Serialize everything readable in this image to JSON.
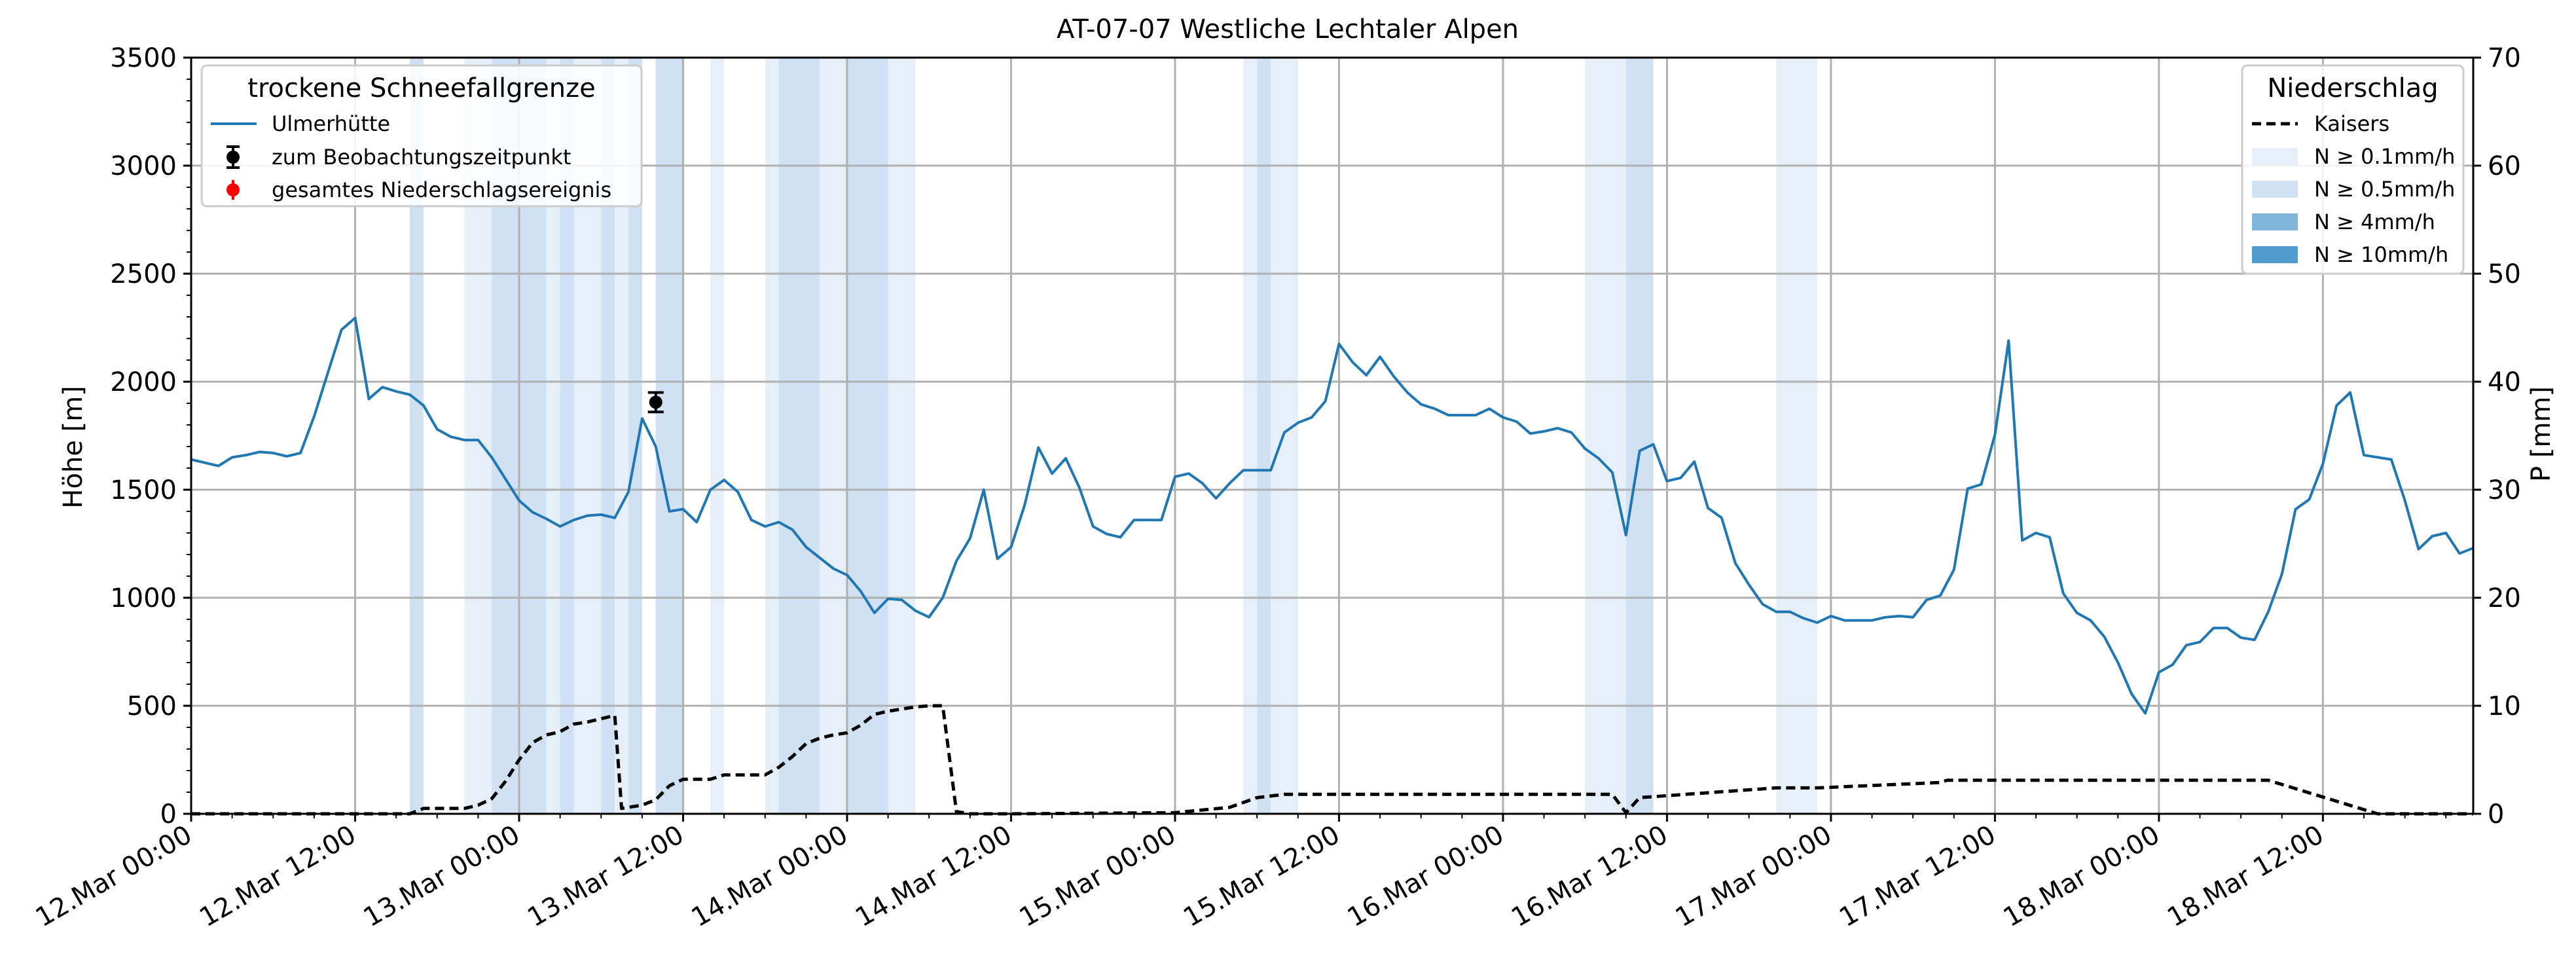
{
  "chart_data": {
    "type": "line",
    "title": "AT-07-07 Westliche Lechtaler Alpen",
    "ylabel": "Höhe [m]",
    "y2label": "P [mm]",
    "ylim": [
      0,
      3500
    ],
    "y2lim": [
      0,
      70
    ],
    "yticks": [
      0,
      500,
      1000,
      1500,
      2000,
      2500,
      3000,
      3500
    ],
    "y2ticks": [
      0,
      10,
      20,
      30,
      40,
      50,
      60,
      70
    ],
    "xlim_hours": [
      0,
      167
    ],
    "xtick_labels": [
      "12.Mar 00:00",
      "12.Mar 12:00",
      "13.Mar 00:00",
      "13.Mar 12:00",
      "14.Mar 00:00",
      "14.Mar 12:00",
      "15.Mar 00:00",
      "15.Mar 12:00",
      "16.Mar 00:00",
      "16.Mar 12:00",
      "17.Mar 00:00",
      "17.Mar 12:00",
      "18.Mar 00:00",
      "18.Mar 12:00"
    ],
    "grid": true,
    "legend_left": {
      "title": "trockene Schneefallgrenze",
      "placement": "top-left",
      "entries": [
        "Ulmerhütte",
        "zum Beobachtungszeitpunkt",
        "gesamtes Niederschlagsereignis"
      ]
    },
    "legend_right": {
      "title": "Niederschlag",
      "placement": "top-right",
      "entries": [
        "Kaisers",
        "N ≥ 0.1mm/h",
        "N ≥ 0.5mm/h",
        "N ≥ 4mm/h",
        "N ≥ 10mm/h"
      ]
    },
    "colors": {
      "line": "#1f77b4",
      "precip": "#000000",
      "n01": "#e6eef8",
      "n05": "#cfe1f2",
      "n4": "#7fb6d9",
      "n10": "#4f9bcb",
      "grid": "#b0b0b0",
      "observation": "#000000",
      "total_event": "#ff0000"
    },
    "series": [
      {
        "name": "Ulmerhütte",
        "axis": "left",
        "x_hours": [
          0,
          2,
          3,
          4,
          5,
          6,
          7,
          8,
          9,
          10,
          11,
          12,
          13,
          14,
          15,
          16,
          17,
          18,
          19,
          20,
          21,
          22,
          23,
          24,
          25,
          26,
          27,
          28,
          29,
          30,
          31,
          32,
          33,
          34,
          35,
          36,
          37,
          38,
          39,
          40,
          41,
          42,
          43,
          44,
          45,
          46,
          47,
          48,
          49,
          50,
          51,
          52,
          53,
          54,
          55,
          56,
          57,
          58,
          59,
          60,
          61,
          62,
          63,
          64,
          65,
          66,
          67,
          68,
          69,
          70,
          71,
          72,
          73,
          74,
          75,
          76,
          77,
          78,
          79,
          80,
          81,
          82,
          83,
          84,
          85,
          86,
          87,
          88,
          89,
          90,
          91,
          92,
          93,
          94,
          95,
          96,
          97,
          98,
          99,
          100,
          101,
          102,
          103,
          104,
          105,
          106,
          107,
          108,
          109,
          110,
          111,
          112,
          113,
          114,
          115,
          116,
          117,
          118,
          119,
          120,
          121,
          122,
          123,
          124,
          125,
          126,
          127,
          128,
          129,
          130,
          131,
          132,
          133,
          134,
          135,
          136,
          137,
          138,
          139,
          140,
          141,
          142,
          143,
          144,
          145,
          146,
          147,
          148,
          149,
          150,
          151,
          152,
          153,
          154,
          155,
          156,
          157,
          158,
          159,
          160,
          161,
          162,
          163,
          164,
          165,
          166,
          167
        ],
        "values": [
          1640,
          1610,
          1650,
          1660,
          1675,
          1670,
          1655,
          1670,
          1840,
          2040,
          2240,
          2295,
          1920,
          1975,
          1955,
          1940,
          1890,
          1780,
          1745,
          1730,
          1730,
          1650,
          1550,
          1450,
          1395,
          1365,
          1330,
          1360,
          1380,
          1385,
          1370,
          1490,
          1830,
          1700,
          1400,
          1410,
          1350,
          1500,
          1545,
          1490,
          1360,
          1330,
          1350,
          1315,
          1235,
          1185,
          1135,
          1105,
          1030,
          930,
          995,
          990,
          940,
          910,
          1000,
          1170,
          1275,
          1500,
          1180,
          1235,
          1430,
          1695,
          1575,
          1645,
          1510,
          1330,
          1295,
          1280,
          1360,
          1360,
          1360,
          1560,
          1575,
          1530,
          1460,
          1530,
          1590,
          1590,
          1590,
          1765,
          1810,
          1835,
          1910,
          2175,
          2090,
          2030,
          2115,
          2025,
          1950,
          1895,
          1875,
          1845,
          1845,
          1845,
          1875,
          1835,
          1815,
          1760,
          1770,
          1785,
          1765,
          1690,
          1645,
          1580,
          1290,
          1680,
          1710,
          1540,
          1555,
          1630,
          1415,
          1370,
          1160,
          1060,
          970,
          935,
          935,
          905,
          885,
          915,
          895,
          895,
          895,
          910,
          915,
          910,
          990,
          1010,
          1130,
          1505,
          1525,
          1755,
          2190,
          1265,
          1300,
          1280,
          1020,
          930,
          895,
          820,
          700,
          555,
          465,
          655,
          690,
          780,
          795,
          860,
          860,
          815,
          805,
          935,
          1110,
          1410,
          1455,
          1620,
          1890,
          1950,
          1660,
          1650,
          1640,
          1450,
          1225,
          1285,
          1300,
          1205,
          1230
        ]
      },
      {
        "name": "Kaisers",
        "axis": "right",
        "x_hours": [
          0,
          16,
          17,
          20,
          21,
          22,
          23,
          24,
          25,
          26,
          27,
          28,
          29,
          30,
          31,
          31.5,
          32,
          33,
          34,
          35,
          36,
          37,
          38,
          39,
          40,
          41,
          42,
          43,
          44,
          45,
          46,
          47,
          48,
          49,
          50,
          51,
          52,
          53,
          54,
          55,
          56,
          56.5,
          57,
          58,
          60,
          72,
          76,
          78,
          80,
          101,
          102,
          103,
          104,
          105,
          106,
          116,
          117,
          118,
          119,
          128,
          128.5,
          129,
          140,
          152,
          160,
          167
        ],
        "values": [
          0,
          0,
          0.5,
          0.5,
          0.8,
          1.4,
          3.0,
          5.0,
          6.6,
          7.3,
          7.6,
          8.3,
          8.5,
          8.8,
          9.1,
          0.5,
          0.6,
          0.8,
          1.3,
          2.6,
          3.2,
          3.2,
          3.2,
          3.6,
          3.6,
          3.6,
          3.6,
          4.3,
          5.3,
          6.5,
          7.0,
          7.3,
          7.5,
          8.2,
          9.2,
          9.5,
          9.7,
          9.9,
          10.0,
          10.0,
          0.2,
          0.1,
          0,
          0,
          0,
          0.1,
          0.6,
          1.5,
          1.8,
          1.8,
          1.8,
          1.8,
          1.8,
          0.1,
          1.5,
          2.4,
          2.4,
          2.4,
          2.4,
          2.9,
          3.1,
          3.1,
          3.1,
          3.1,
          0,
          0
        ]
      }
    ],
    "precip_bands": [
      {
        "from": 16.0,
        "to": 17.0,
        "level": "n05"
      },
      {
        "from": 20.0,
        "to": 22.0,
        "level": "n01"
      },
      {
        "from": 22.0,
        "to": 26.0,
        "level": "n05"
      },
      {
        "from": 26.0,
        "to": 27.0,
        "level": "n01"
      },
      {
        "from": 27.0,
        "to": 28.0,
        "level": "n05"
      },
      {
        "from": 28.0,
        "to": 30.0,
        "level": "n01"
      },
      {
        "from": 30.0,
        "to": 31.0,
        "level": "n05"
      },
      {
        "from": 31.0,
        "to": 32.0,
        "level": "n01"
      },
      {
        "from": 32.0,
        "to": 33.0,
        "level": "n05"
      },
      {
        "from": 34.0,
        "to": 36.0,
        "level": "n05"
      },
      {
        "from": 38.0,
        "to": 39.0,
        "level": "n01"
      },
      {
        "from": 42.0,
        "to": 43.0,
        "level": "n01"
      },
      {
        "from": 43.0,
        "to": 46.0,
        "level": "n05"
      },
      {
        "from": 46.0,
        "to": 48.0,
        "level": "n01"
      },
      {
        "from": 48.0,
        "to": 51.0,
        "level": "n05"
      },
      {
        "from": 51.0,
        "to": 53.0,
        "level": "n01"
      },
      {
        "from": 77.0,
        "to": 78.0,
        "level": "n01"
      },
      {
        "from": 78.0,
        "to": 79.0,
        "level": "n05"
      },
      {
        "from": 79.0,
        "to": 81.0,
        "level": "n01"
      },
      {
        "from": 102.0,
        "to": 105.0,
        "level": "n01"
      },
      {
        "from": 105.0,
        "to": 107.0,
        "level": "n05"
      },
      {
        "from": 116.0,
        "to": 119.0,
        "level": "n01"
      }
    ],
    "observation_marker": {
      "x_hours": 34,
      "y": 1905,
      "err_low": 1860,
      "err_high": 1950
    }
  }
}
